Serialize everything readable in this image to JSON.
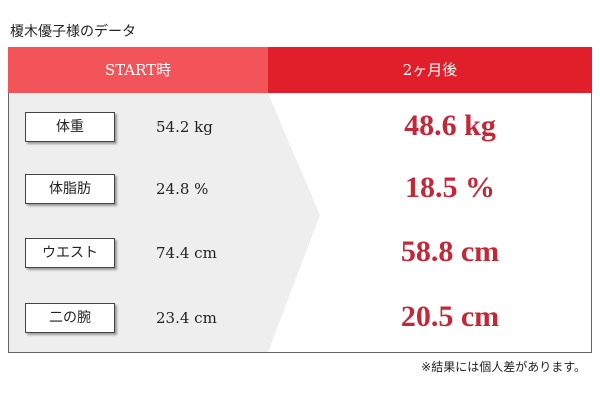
{
  "title": "榎木優子様のデータ",
  "table": {
    "header": [
      "START時",
      "2ヶ月後"
    ],
    "rows": [
      [
        "体重",
        "54.2 kg",
        "48.6 kg"
      ],
      [
        "体脂肪",
        "24.8 %",
        "18.5 %"
      ],
      [
        "ウエスト",
        "74.4 cm",
        "58.8 cm"
      ],
      [
        "二の腕",
        "23.4 cm",
        "20.5 cm"
      ]
    ]
  },
  "note": "※結果には個人差があります。"
}
